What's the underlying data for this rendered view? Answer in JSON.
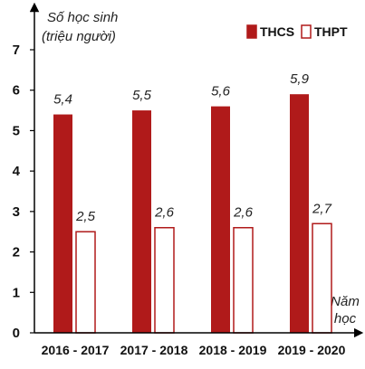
{
  "chart_data": {
    "type": "bar",
    "ylabel_line1": "Số học sinh",
    "ylabel_line2": "(triệu người)",
    "xlabel_line1": "Năm",
    "xlabel_line2": "học",
    "categories": [
      "2016 - 2017",
      "2017 - 2018",
      "2018 - 2019",
      "2019 - 2020"
    ],
    "series": [
      {
        "name": "THCS",
        "values": [
          5.4,
          5.5,
          5.6,
          5.9
        ],
        "value_labels": [
          "5,4",
          "5,5",
          "5,6",
          "5,9"
        ],
        "color": "#b01a1a"
      },
      {
        "name": "THPT",
        "values": [
          2.5,
          2.6,
          2.6,
          2.7
        ],
        "value_labels": [
          "2,5",
          "2,6",
          "2,6",
          "2,7"
        ],
        "color": "#ffffff",
        "stroke": "#b01a1a"
      }
    ],
    "yticks": [
      0,
      1,
      2,
      3,
      4,
      5,
      6,
      7
    ],
    "ylim": [
      0,
      7
    ],
    "grid": false,
    "legend": "top-right"
  }
}
